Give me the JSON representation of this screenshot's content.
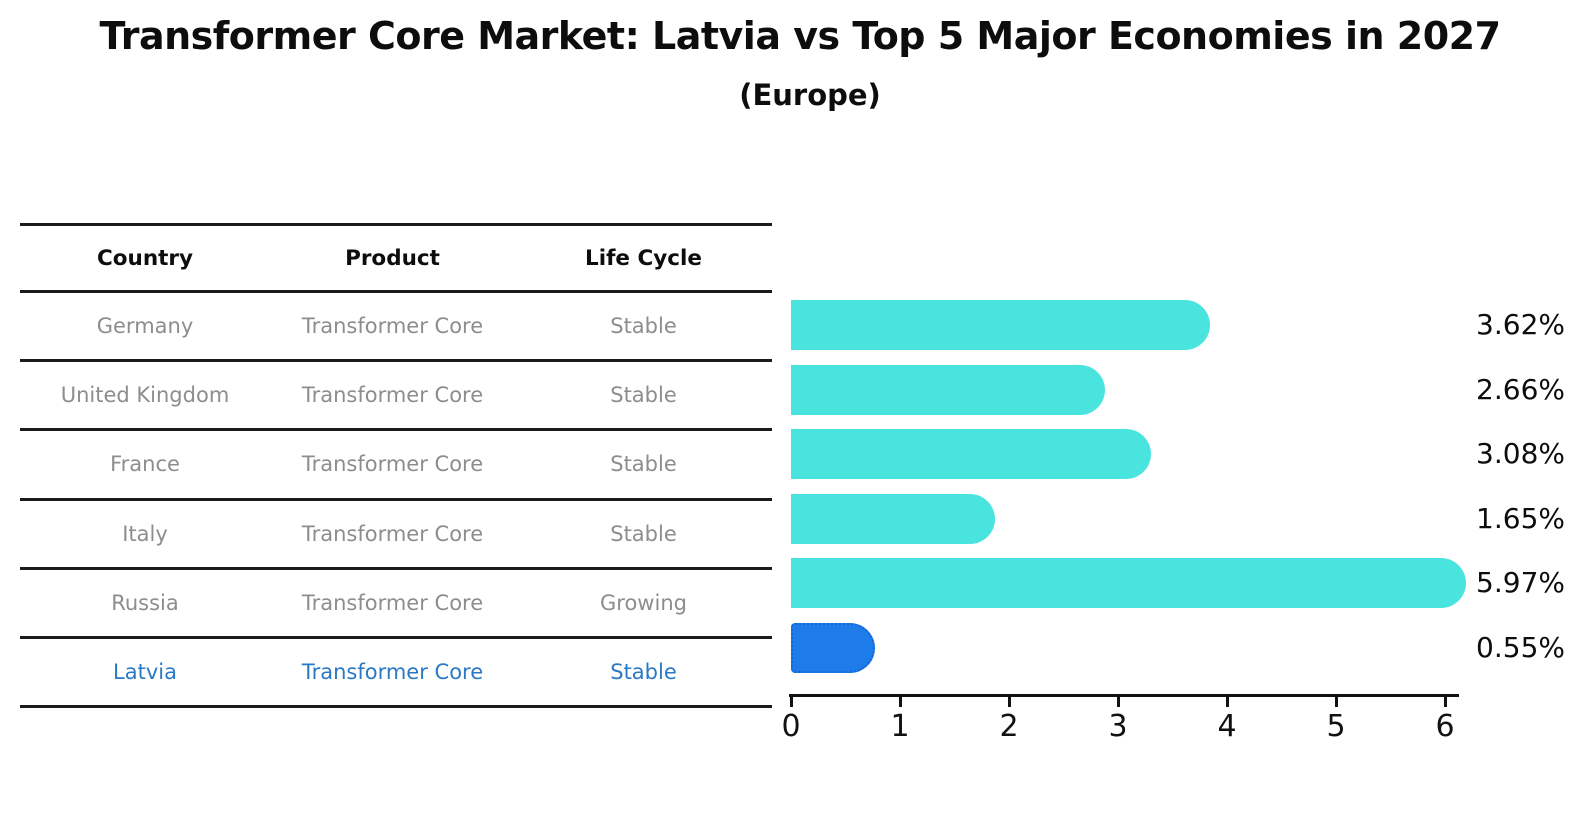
{
  "chart_data": {
    "type": "bar",
    "orientation": "horizontal",
    "title": "Transformer Core Market: Latvia vs Top 5 Major Economies in 2027",
    "subtitle": "(Europe)",
    "categories": [
      "Germany",
      "United Kingdom",
      "France",
      "Italy",
      "Russia",
      "Latvia"
    ],
    "values": [
      3.62,
      2.66,
      3.08,
      1.65,
      5.97,
      0.55
    ],
    "value_labels": [
      "3.62%",
      "2.66%",
      "3.08%",
      "1.65%",
      "5.97%",
      "0.55%"
    ],
    "x_ticks": [
      "0",
      "1",
      "2",
      "3",
      "4",
      "5",
      "6"
    ],
    "xlim": [
      0,
      6
    ],
    "grid": false,
    "legend": false,
    "bar_color": "#4AE4DE",
    "highlight_index": 5,
    "highlight_color": "#1D7CE8",
    "highlight_border_color": "#1565D8",
    "highlight_border_style": "dotted",
    "label_color": "#0d0d0d"
  },
  "table": {
    "columns": [
      "Country",
      "Product",
      "Life Cycle"
    ],
    "rows": [
      {
        "country": "Germany",
        "product": "Transformer Core",
        "life_cycle": "Stable",
        "highlighted": false
      },
      {
        "country": "United Kingdom",
        "product": "Transformer Core",
        "life_cycle": "Stable",
        "highlighted": false
      },
      {
        "country": "France",
        "product": "Transformer Core",
        "life_cycle": "Stable",
        "highlighted": false
      },
      {
        "country": "Italy",
        "product": "Transformer Core",
        "life_cycle": "Stable",
        "highlighted": false
      },
      {
        "country": "Russia",
        "product": "Transformer Core",
        "life_cycle": "Growing",
        "highlighted": false
      },
      {
        "country": "Latvia",
        "product": "Transformer Core",
        "life_cycle": "Stable",
        "highlighted": true
      }
    ],
    "text_color": "#8d8d8d",
    "highlight_text_color": "#2a79c5"
  }
}
